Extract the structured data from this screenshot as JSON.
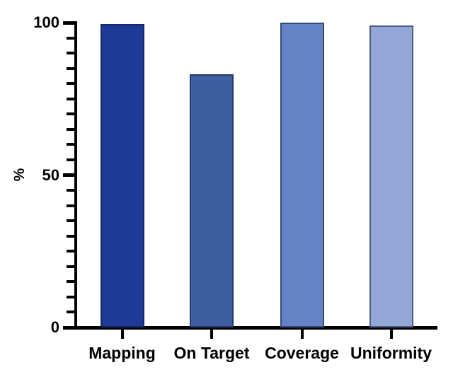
{
  "chart_data": {
    "type": "bar",
    "title": "",
    "categories": [
      "Mapping",
      "On Target",
      "Coverage",
      "Uniformity"
    ],
    "values": [
      99.5,
      83,
      100,
      99
    ],
    "bar_colors": [
      "#1e3a97",
      "#3e5f9f",
      "#6383c4",
      "#92a6d8"
    ],
    "bar_border_color": "rgba(16,26,62,0.55)",
    "xlabel": "",
    "ylabel": "%",
    "ylim": [
      0,
      100
    ],
    "y_major_ticks": [
      0,
      50,
      100
    ],
    "y_minor_tick_step": 5,
    "grid": false,
    "legend": false,
    "axis_color": "#000000",
    "text_color": "#000000",
    "background_color": "#ffffff"
  }
}
